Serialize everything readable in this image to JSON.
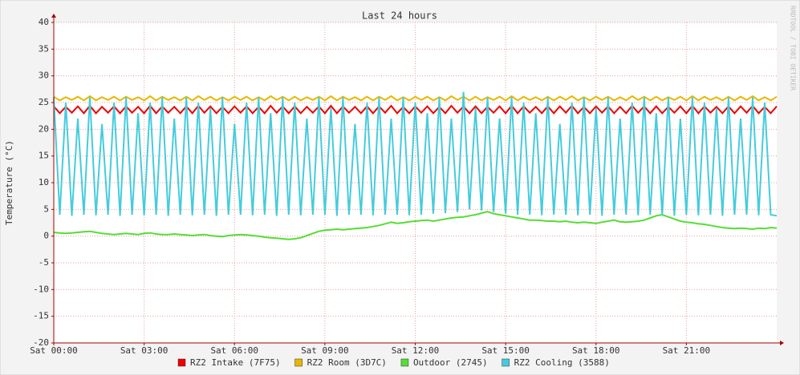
{
  "chart_data": {
    "type": "line",
    "title": "Last 24 hours",
    "y_label": "Temperature (°C)",
    "watermark": "RRDTOOL / TOBI OETIKER",
    "x": [
      0,
      0.2,
      0.4,
      0.6,
      0.8,
      1,
      1.2,
      1.4,
      1.6,
      1.8,
      2,
      2.2,
      2.4,
      2.6,
      2.8,
      3,
      3.2,
      3.4,
      3.6,
      3.8,
      4,
      4.2,
      4.4,
      4.6,
      4.8,
      5,
      5.2,
      5.4,
      5.6,
      5.8,
      6,
      6.2,
      6.4,
      6.6,
      6.8,
      7,
      7.2,
      7.4,
      7.6,
      7.8,
      8,
      8.2,
      8.4,
      8.6,
      8.8,
      9,
      9.2,
      9.4,
      9.6,
      9.8,
      10,
      10.2,
      10.4,
      10.6,
      10.8,
      11,
      11.2,
      11.4,
      11.6,
      11.8,
      12,
      12.2,
      12.4,
      12.6,
      12.8,
      13,
      13.2,
      13.4,
      13.6,
      13.8,
      14,
      14.2,
      14.4,
      14.6,
      14.8,
      15,
      15.2,
      15.4,
      15.6,
      15.8,
      16,
      16.2,
      16.4,
      16.6,
      16.8,
      17,
      17.2,
      17.4,
      17.6,
      17.8,
      18,
      18.2,
      18.4,
      18.6,
      18.8,
      19,
      19.2,
      19.4,
      19.6,
      19.8,
      20,
      20.2,
      20.4,
      20.6,
      20.8,
      21,
      21.2,
      21.4,
      21.6,
      21.8,
      22,
      22.2,
      22.4,
      22.6,
      22.8,
      23,
      23.2,
      23.4,
      23.6,
      23.8,
      24
    ],
    "series": [
      {
        "name": "RZ2 Intake (7F75)",
        "color": "#ee0000",
        "values": [
          24.3,
          23.0,
          24.2,
          23.1,
          24.3,
          23.0,
          24.4,
          23.0,
          24.2,
          23.1,
          24.3,
          23.0,
          24.3,
          23.1,
          24.2,
          23.0,
          24.4,
          23.0,
          24.3,
          23.1,
          24.2,
          23.0,
          24.3,
          23.0,
          24.4,
          23.1,
          24.3,
          23.0,
          24.2,
          23.0,
          24.3,
          23.1,
          24.3,
          23.0,
          24.2,
          23.0,
          24.4,
          23.1,
          24.3,
          23.0,
          24.3,
          23.0,
          24.2,
          23.1,
          24.3,
          23.0,
          24.4,
          23.0,
          24.3,
          23.1,
          24.2,
          23.0,
          24.3,
          23.0,
          24.3,
          23.1,
          24.4,
          23.0,
          24.2,
          23.0,
          24.3,
          23.1,
          24.3,
          23.0,
          24.2,
          23.0,
          24.4,
          23.1,
          24.3,
          23.0,
          24.3,
          23.0,
          24.2,
          23.1,
          24.3,
          23.0,
          24.4,
          23.0,
          24.3,
          23.1,
          24.2,
          23.0,
          24.3,
          23.0,
          24.3,
          23.1,
          24.4,
          23.0,
          24.2,
          23.0,
          24.3,
          23.1,
          24.3,
          23.0,
          24.2,
          23.0,
          24.4,
          23.1,
          24.3,
          23.0,
          24.3,
          23.0,
          24.2,
          23.1,
          24.3,
          23.0,
          24.4,
          23.0,
          24.3,
          23.1,
          24.2,
          23.0,
          24.3,
          23.0,
          24.3,
          23.1,
          24.4,
          23.0,
          24.2,
          23.0,
          24.3
        ]
      },
      {
        "name": "RZ2 Room (3D7C)",
        "color": "#e8b800",
        "values": [
          26.1,
          25.4,
          26.0,
          25.5,
          26.1,
          25.4,
          26.2,
          25.4,
          26.0,
          25.5,
          26.1,
          25.4,
          26.1,
          25.5,
          26.0,
          25.4,
          26.2,
          25.4,
          26.1,
          25.5,
          26.0,
          25.4,
          26.1,
          25.4,
          26.2,
          25.5,
          26.1,
          25.4,
          26.0,
          25.4,
          26.1,
          25.5,
          26.1,
          25.4,
          26.0,
          25.4,
          26.2,
          25.5,
          26.1,
          25.4,
          26.1,
          25.4,
          26.0,
          25.5,
          26.1,
          25.4,
          26.2,
          25.4,
          26.1,
          25.5,
          26.0,
          25.4,
          26.1,
          25.4,
          26.1,
          25.5,
          26.2,
          25.4,
          26.0,
          25.4,
          26.1,
          25.5,
          26.1,
          25.4,
          26.0,
          25.4,
          26.2,
          25.5,
          26.1,
          25.4,
          26.1,
          25.4,
          26.0,
          25.5,
          26.1,
          25.4,
          26.2,
          25.4,
          26.1,
          25.5,
          26.0,
          25.4,
          26.1,
          25.4,
          26.1,
          25.5,
          26.2,
          25.4,
          26.0,
          25.4,
          26.1,
          25.5,
          26.1,
          25.4,
          26.0,
          25.4,
          26.2,
          25.5,
          26.1,
          25.4,
          26.1,
          25.4,
          26.0,
          25.5,
          26.1,
          25.4,
          26.2,
          25.4,
          26.1,
          25.5,
          26.0,
          25.4,
          26.1,
          25.4,
          26.1,
          25.5,
          26.2,
          25.4,
          26.0,
          25.4,
          26.1
        ]
      },
      {
        "name": "Outdoor (2745)",
        "color": "#55dd33",
        "values": [
          0.7,
          0.6,
          0.5,
          0.6,
          0.7,
          0.8,
          0.9,
          0.7,
          0.5,
          0.4,
          0.3,
          0.4,
          0.5,
          0.4,
          0.3,
          0.5,
          0.6,
          0.4,
          0.3,
          0.3,
          0.4,
          0.3,
          0.2,
          0.1,
          0.2,
          0.3,
          0.1,
          0,
          -0.1,
          0.1,
          0.2,
          0.3,
          0.2,
          0.1,
          0,
          -0.2,
          -0.3,
          -0.4,
          -0.5,
          -0.6,
          -0.5,
          -0.3,
          0.1,
          0.5,
          0.9,
          1.1,
          1.2,
          1.3,
          1.2,
          1.3,
          1.4,
          1.5,
          1.6,
          1.8,
          2.0,
          2.3,
          2.6,
          2.4,
          2.5,
          2.7,
          2.8,
          2.9,
          3.0,
          2.8,
          3.0,
          3.2,
          3.4,
          3.5,
          3.6,
          3.8,
          4.0,
          4.3,
          4.6,
          4.2,
          4.0,
          3.8,
          3.6,
          3.4,
          3.2,
          3.0,
          3.0,
          2.9,
          2.8,
          2.8,
          2.7,
          2.8,
          2.6,
          2.5,
          2.6,
          2.5,
          2.4,
          2.6,
          2.8,
          3.0,
          2.7,
          2.6,
          2.7,
          2.8,
          3.0,
          3.4,
          3.8,
          4.0,
          3.6,
          3.2,
          2.8,
          2.6,
          2.5,
          2.3,
          2.2,
          2.0,
          1.8,
          1.6,
          1.5,
          1.4,
          1.5,
          1.4,
          1.3,
          1.5,
          1.4,
          1.6,
          1.5
        ]
      },
      {
        "name": "RZ2 Cooling (3588)",
        "color": "#44ccdd",
        "values": [
          26,
          4,
          25,
          3.8,
          22,
          4,
          26,
          3.9,
          21,
          4,
          25,
          3.8,
          26,
          4,
          23,
          3.9,
          25,
          4,
          26,
          3.8,
          22,
          4,
          26,
          3.9,
          25,
          4,
          24,
          3.8,
          26,
          4,
          21,
          4,
          25,
          3.9,
          26,
          4,
          23,
          3.8,
          26,
          4,
          25,
          3.9,
          22,
          4,
          26,
          4,
          24,
          3.8,
          26,
          4,
          21,
          4,
          25,
          3.9,
          26,
          4,
          22,
          4,
          26,
          3.9,
          25,
          4,
          23,
          4.2,
          26,
          4.3,
          22,
          4.5,
          27,
          5,
          24,
          4.8,
          26,
          4.5,
          22,
          4.2,
          26,
          4,
          25,
          4,
          23,
          3.9,
          26,
          4,
          21,
          4,
          25,
          3.9,
          26,
          4,
          24,
          3.8,
          26,
          4,
          22,
          4,
          25,
          3.9,
          26,
          4,
          23,
          4,
          26,
          3.8,
          22,
          4,
          26,
          3.9,
          25,
          4,
          24,
          3.8,
          26,
          4,
          22,
          4,
          26,
          3.9,
          25,
          4,
          3.8
        ]
      }
    ],
    "xlim": [
      0,
      24
    ],
    "ylim": [
      -20,
      40
    ],
    "xticks": [
      {
        "value": 0,
        "label": "Sat 00:00"
      },
      {
        "value": 3,
        "label": "Sat 03:00"
      },
      {
        "value": 6,
        "label": "Sat 06:00"
      },
      {
        "value": 9,
        "label": "Sat 09:00"
      },
      {
        "value": 12,
        "label": "Sat 12:00"
      },
      {
        "value": 15,
        "label": "Sat 15:00"
      },
      {
        "value": 18,
        "label": "Sat 18:00"
      },
      {
        "value": 21,
        "label": "Sat 21:00"
      }
    ],
    "yticks": [
      -20,
      -15,
      -10,
      -5,
      0,
      5,
      10,
      15,
      20,
      25,
      30,
      35,
      40
    ],
    "grid": true
  }
}
